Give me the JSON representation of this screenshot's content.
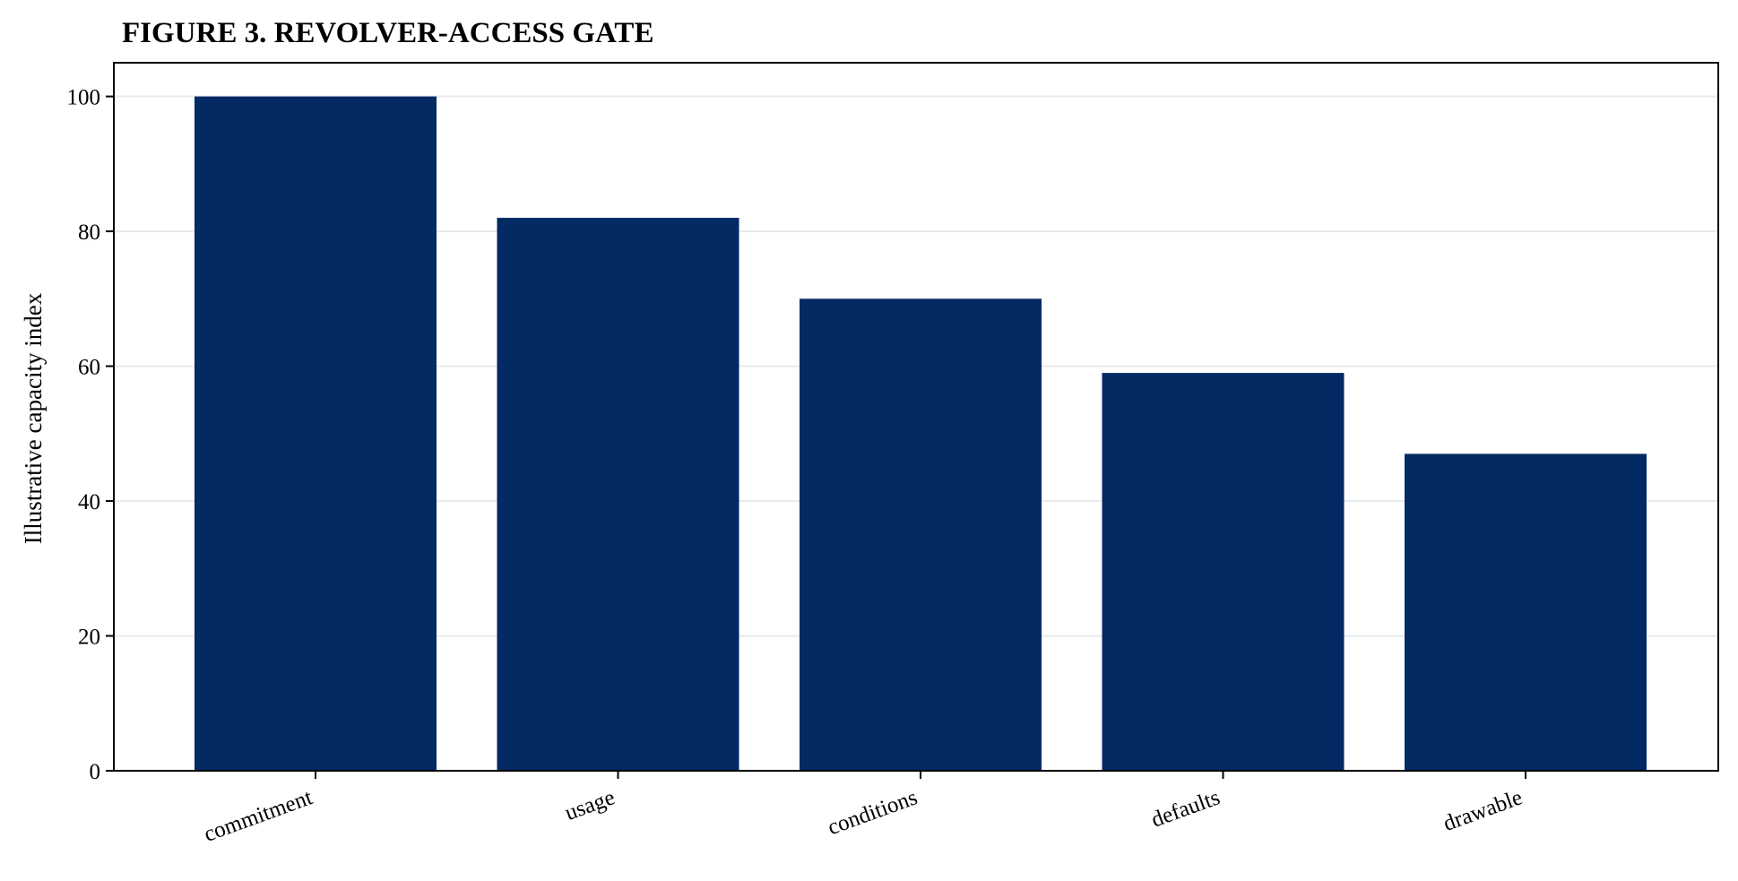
{
  "chart_data": {
    "type": "bar",
    "title": "FIGURE 3. REVOLVER-ACCESS GATE",
    "xlabel": "",
    "ylabel": "Illustrative capacity index",
    "categories": [
      "commitment",
      "usage",
      "conditions",
      "defaults",
      "drawable"
    ],
    "values": [
      100,
      82,
      70,
      59,
      47
    ],
    "ylim": [
      0,
      105
    ],
    "yticks": [
      0,
      20,
      40,
      60,
      80,
      100
    ],
    "grid": "horizontal",
    "colors": {
      "bar": "#032a63",
      "grid": "#e6e9ee",
      "axis": "#000000"
    }
  }
}
